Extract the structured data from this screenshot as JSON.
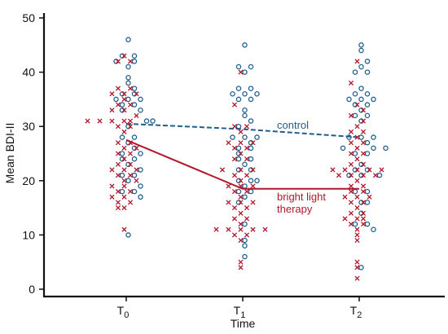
{
  "chart_data": {
    "type": "scatter",
    "title": "",
    "xlabel": "Time",
    "ylabel": "Mean BDI-II",
    "categories": [
      "T0",
      "T1",
      "T2"
    ],
    "category_display": [
      {
        "base": "T",
        "sub": "0"
      },
      {
        "base": "T",
        "sub": "1"
      },
      {
        "base": "T",
        "sub": "2"
      }
    ],
    "ylim": [
      0,
      50
    ],
    "yticks": [
      0,
      10,
      20,
      30,
      40,
      50
    ],
    "grid": false,
    "colors": {
      "control": "#1f5f8b",
      "bright_light": "#b2182b",
      "axis": "#111111"
    },
    "series": [
      {
        "key": "control",
        "marker": "circle",
        "mean_values": [
          30.5,
          29.5,
          28
        ],
        "points": [
          [
            [
              0,
              46
            ],
            [
              -1,
              43
            ],
            [
              1,
              43
            ],
            [
              -2,
              42
            ],
            [
              1,
              42
            ],
            [
              0,
              41
            ],
            [
              0,
              39
            ],
            [
              0,
              38
            ],
            [
              1,
              37
            ],
            [
              -1,
              36
            ],
            [
              1,
              36
            ],
            [
              -2,
              35
            ],
            [
              0,
              35
            ],
            [
              2,
              35
            ],
            [
              -1,
              34
            ],
            [
              1,
              34
            ],
            [
              -1,
              33
            ],
            [
              2,
              33
            ],
            [
              3,
              31
            ],
            [
              4,
              31
            ],
            [
              0,
              30
            ],
            [
              -1,
              28
            ],
            [
              1,
              28
            ],
            [
              0,
              27
            ],
            [
              1,
              26
            ],
            [
              -1,
              25
            ],
            [
              2,
              25
            ],
            [
              -1,
              24
            ],
            [
              1,
              24
            ],
            [
              0,
              23
            ],
            [
              2,
              22
            ],
            [
              -1,
              21
            ],
            [
              1,
              21
            ],
            [
              0,
              20
            ],
            [
              2,
              19
            ],
            [
              -1,
              18
            ],
            [
              1,
              18
            ],
            [
              2,
              17
            ],
            [
              0,
              10
            ]
          ],
          [
            [
              0,
              45
            ],
            [
              -1,
              41
            ],
            [
              1,
              41
            ],
            [
              0,
              40
            ],
            [
              -1,
              37
            ],
            [
              1,
              37
            ],
            [
              -2,
              36
            ],
            [
              0,
              36
            ],
            [
              2,
              36
            ],
            [
              -1,
              35
            ],
            [
              1,
              35
            ],
            [
              0,
              33
            ],
            [
              0,
              32
            ],
            [
              1,
              31
            ],
            [
              -1,
              30
            ],
            [
              -2,
              28
            ],
            [
              0,
              28
            ],
            [
              2,
              28
            ],
            [
              1,
              27
            ],
            [
              -1,
              26
            ],
            [
              1,
              26
            ],
            [
              -1,
              25
            ],
            [
              -1,
              24
            ],
            [
              1,
              24
            ],
            [
              0,
              23
            ],
            [
              -1,
              22
            ],
            [
              1,
              22
            ],
            [
              -1,
              20
            ],
            [
              1,
              20
            ],
            [
              2,
              20
            ],
            [
              0,
              19
            ],
            [
              -1,
              18
            ],
            [
              1,
              18
            ],
            [
              0,
              17
            ],
            [
              -1,
              16
            ],
            [
              0,
              12
            ],
            [
              0,
              9
            ],
            [
              0,
              8
            ],
            [
              0,
              6
            ]
          ],
          [
            [
              0,
              45
            ],
            [
              0,
              44
            ],
            [
              1,
              42
            ],
            [
              0,
              41
            ],
            [
              -1,
              40
            ],
            [
              1,
              40
            ],
            [
              0,
              37
            ],
            [
              -1,
              36
            ],
            [
              1,
              36
            ],
            [
              -2,
              35
            ],
            [
              0,
              35
            ],
            [
              2,
              35
            ],
            [
              -1,
              34
            ],
            [
              1,
              34
            ],
            [
              0,
              33
            ],
            [
              -1,
              32
            ],
            [
              1,
              32
            ],
            [
              0,
              31
            ],
            [
              -2,
              28
            ],
            [
              0,
              28
            ],
            [
              2,
              28
            ],
            [
              1,
              27
            ],
            [
              -3,
              26
            ],
            [
              2,
              26
            ],
            [
              4,
              26
            ],
            [
              -1,
              25
            ],
            [
              1,
              25
            ],
            [
              0,
              23
            ],
            [
              -1,
              22
            ],
            [
              1,
              22
            ],
            [
              -2,
              21
            ],
            [
              0,
              21
            ],
            [
              3,
              21
            ],
            [
              -1,
              18
            ],
            [
              1,
              18
            ],
            [
              0,
              16
            ],
            [
              1,
              16
            ],
            [
              0,
              14
            ],
            [
              -1,
              12
            ],
            [
              1,
              12
            ],
            [
              2,
              11
            ],
            [
              0,
              4
            ]
          ]
        ]
      },
      {
        "key": "bright_light",
        "label_lines": [
          "bright light",
          "therapy"
        ],
        "marker": "x",
        "mean_values": [
          27.5,
          18.5,
          18.5
        ],
        "points": [
          [
            [
              0,
              43
            ],
            [
              -1,
              42
            ],
            [
              1,
              42
            ],
            [
              -1,
              37
            ],
            [
              1,
              37
            ],
            [
              -2,
              36
            ],
            [
              0,
              36
            ],
            [
              2,
              36
            ],
            [
              0,
              35
            ],
            [
              -1,
              34
            ],
            [
              1,
              34
            ],
            [
              -2,
              33
            ],
            [
              0,
              33
            ],
            [
              2,
              32
            ],
            [
              -6,
              31
            ],
            [
              -4,
              31
            ],
            [
              -2,
              31
            ],
            [
              0,
              31
            ],
            [
              1,
              31
            ],
            [
              -1,
              30
            ],
            [
              1,
              30
            ],
            [
              0,
              29
            ],
            [
              -1,
              27
            ],
            [
              1,
              27
            ],
            [
              0,
              26
            ],
            [
              2,
              26
            ],
            [
              -1,
              25
            ],
            [
              1,
              25
            ],
            [
              0,
              24
            ],
            [
              -1,
              23
            ],
            [
              1,
              23
            ],
            [
              -2,
              22
            ],
            [
              0,
              22
            ],
            [
              2,
              22
            ],
            [
              -1,
              21
            ],
            [
              1,
              21
            ],
            [
              0,
              20
            ],
            [
              2,
              20
            ],
            [
              -2,
              19
            ],
            [
              0,
              19
            ],
            [
              -1,
              18
            ],
            [
              1,
              18
            ],
            [
              -2,
              17
            ],
            [
              0,
              17
            ],
            [
              -1,
              16
            ],
            [
              1,
              16
            ],
            [
              0,
              15
            ],
            [
              -1,
              15
            ],
            [
              0,
              11
            ]
          ],
          [
            [
              0,
              40
            ],
            [
              -1,
              34
            ],
            [
              -1,
              30
            ],
            [
              1,
              30
            ],
            [
              0,
              29
            ],
            [
              -2,
              27
            ],
            [
              0,
              27
            ],
            [
              2,
              27
            ],
            [
              -1,
              26
            ],
            [
              1,
              26
            ],
            [
              0,
              25
            ],
            [
              -1,
              24
            ],
            [
              1,
              24
            ],
            [
              -3,
              22
            ],
            [
              0,
              22
            ],
            [
              2,
              22
            ],
            [
              -1,
              21
            ],
            [
              1,
              21
            ],
            [
              0,
              20
            ],
            [
              -2,
              19
            ],
            [
              0,
              19
            ],
            [
              2,
              19
            ],
            [
              -1,
              18
            ],
            [
              1,
              18
            ],
            [
              0,
              17
            ],
            [
              -2,
              16
            ],
            [
              0,
              16
            ],
            [
              2,
              16
            ],
            [
              -1,
              15
            ],
            [
              1,
              15
            ],
            [
              0,
              14
            ],
            [
              -1,
              13
            ],
            [
              1,
              13
            ],
            [
              0,
              12
            ],
            [
              -4,
              11
            ],
            [
              -2,
              11
            ],
            [
              0,
              11
            ],
            [
              2,
              11
            ],
            [
              4,
              11
            ],
            [
              -1,
              10
            ],
            [
              1,
              10
            ],
            [
              0,
              9
            ],
            [
              0,
              5
            ],
            [
              0,
              4
            ]
          ],
          [
            [
              0,
              42
            ],
            [
              -1,
              38
            ],
            [
              0,
              34
            ],
            [
              1,
              33
            ],
            [
              -1,
              32
            ],
            [
              1,
              31
            ],
            [
              0,
              30
            ],
            [
              -1,
              29
            ],
            [
              1,
              29
            ],
            [
              0,
              28
            ],
            [
              -1,
              27
            ],
            [
              1,
              27
            ],
            [
              0,
              26
            ],
            [
              -1,
              25
            ],
            [
              1,
              25
            ],
            [
              0,
              24
            ],
            [
              -1,
              23
            ],
            [
              1,
              23
            ],
            [
              -4,
              22
            ],
            [
              -2,
              22
            ],
            [
              0,
              22
            ],
            [
              2,
              22
            ],
            [
              4,
              22
            ],
            [
              -3,
              21
            ],
            [
              -1,
              21
            ],
            [
              1,
              21
            ],
            [
              3,
              21
            ],
            [
              0,
              20
            ],
            [
              -1,
              19
            ],
            [
              1,
              19
            ],
            [
              -1,
              18
            ],
            [
              1,
              18
            ],
            [
              -2,
              17
            ],
            [
              0,
              17
            ],
            [
              2,
              17
            ],
            [
              -1,
              16
            ],
            [
              1,
              16
            ],
            [
              0,
              15
            ],
            [
              -1,
              14
            ],
            [
              1,
              14
            ],
            [
              -2,
              13
            ],
            [
              0,
              13
            ],
            [
              1,
              13
            ],
            [
              -1,
              12
            ],
            [
              1,
              12
            ],
            [
              0,
              11
            ],
            [
              0,
              10
            ],
            [
              0,
              9
            ],
            [
              0,
              5
            ],
            [
              0,
              4
            ],
            [
              0,
              2
            ]
          ]
        ]
      }
    ],
    "annotations": [
      {
        "series": "control",
        "lines": [
          "control"
        ]
      },
      {
        "series": "bright_light",
        "lines": [
          "bright light",
          "therapy"
        ]
      }
    ]
  }
}
